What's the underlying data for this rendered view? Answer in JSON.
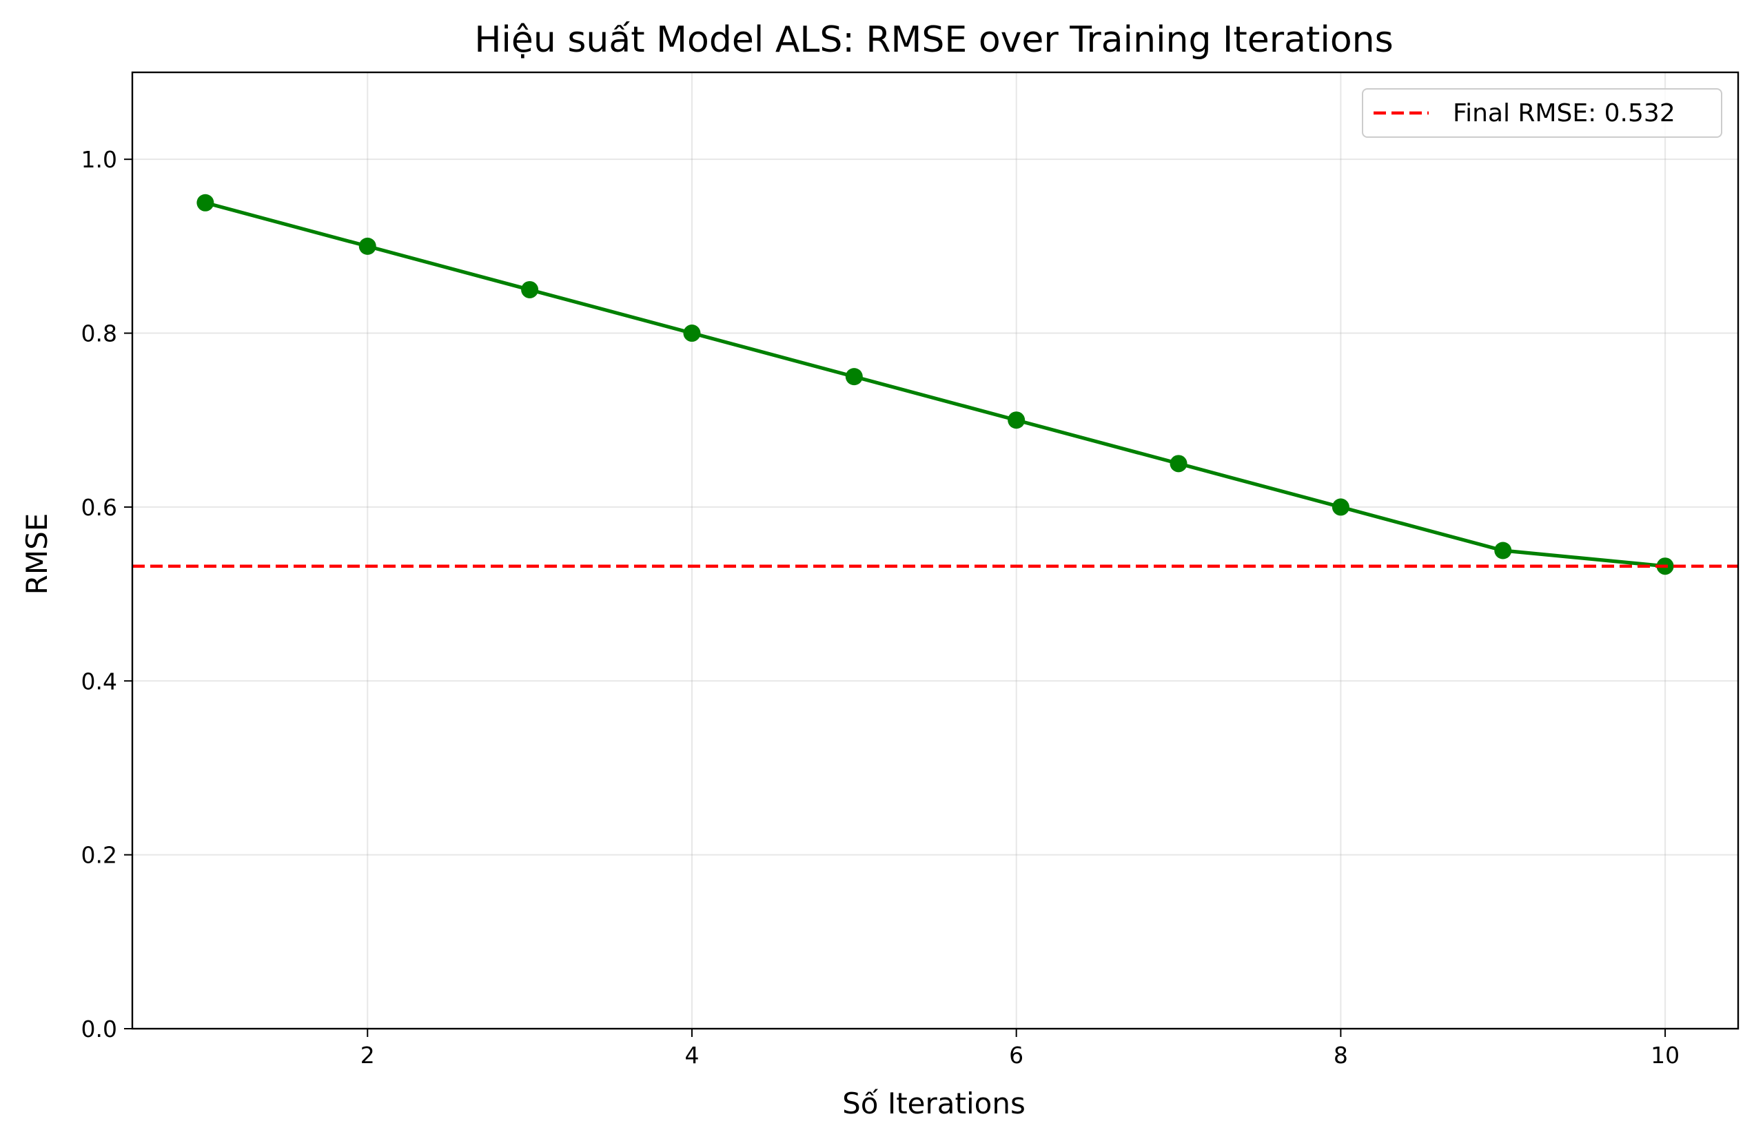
{
  "chart_data": {
    "type": "line",
    "title": "Hiệu suất Model ALS: RMSE over Training Iterations",
    "xlabel": "Số Iterations",
    "ylabel": "RMSE",
    "x": [
      1,
      2,
      3,
      4,
      5,
      6,
      7,
      8,
      9,
      10
    ],
    "series": [
      {
        "values": [
          0.95,
          0.9,
          0.85,
          0.8,
          0.75,
          0.7,
          0.65,
          0.6,
          0.55,
          0.532
        ],
        "color": "#008000",
        "marker": "circle",
        "line_style": "solid"
      }
    ],
    "reference_lines": [
      {
        "orientation": "horizontal",
        "y": 0.532,
        "label": "Final RMSE: 0.532",
        "color": "#ff0000",
        "line_style": "dashed"
      }
    ],
    "xlim": [
      0.55,
      10.45
    ],
    "ylim": [
      0.0,
      1.1
    ],
    "xticks": [
      2,
      4,
      6,
      8,
      10
    ],
    "xtick_labels": [
      "2",
      "4",
      "6",
      "8",
      "10"
    ],
    "yticks": [
      0.0,
      0.2,
      0.4,
      0.6,
      0.8,
      1.0
    ],
    "ytick_labels": [
      "0.0",
      "0.2",
      "0.4",
      "0.6",
      "0.8",
      "1.0"
    ],
    "grid": true,
    "legend_position": "upper right"
  }
}
